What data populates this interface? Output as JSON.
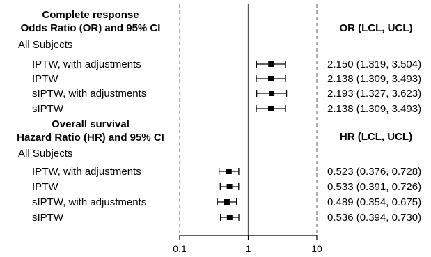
{
  "chart_data": {
    "type": "forest",
    "x_scale": "log",
    "xlim": [
      0.1,
      10
    ],
    "x_ticks": [
      "0.1",
      "1",
      "10"
    ],
    "reference_line": 1,
    "dashed_reference_lines": [
      0.1,
      10
    ],
    "sections": [
      {
        "title_line1": "Complete response",
        "title_line2": "Odds Ratio (OR) and 95% CI",
        "group": "All Subjects",
        "column_header": "OR (LCL, UCL)",
        "rows": [
          {
            "label": "IPTW, with adjustments",
            "estimate": 2.15,
            "lcl": 1.319,
            "ucl": 3.504,
            "text": "2.150 (1.319, 3.504)"
          },
          {
            "label": "IPTW",
            "estimate": 2.138,
            "lcl": 1.309,
            "ucl": 3.493,
            "text": "2.138 (1.309, 3.493)"
          },
          {
            "label": "sIPTW, with adjustments",
            "estimate": 2.193,
            "lcl": 1.327,
            "ucl": 3.623,
            "text": "2.193 (1.327, 3.623)"
          },
          {
            "label": "sIPTW",
            "estimate": 2.138,
            "lcl": 1.309,
            "ucl": 3.493,
            "text": "2.138 (1.309, 3.493)"
          }
        ]
      },
      {
        "title_line1": "Overall survival",
        "title_line2": "Hazard Ratio (HR) and 95% CI",
        "group": "All Subjects",
        "column_header": "HR (LCL, UCL)",
        "rows": [
          {
            "label": "IPTW, with adjustments",
            "estimate": 0.523,
            "lcl": 0.376,
            "ucl": 0.728,
            "text": "0.523 (0.376, 0.728)"
          },
          {
            "label": "IPTW",
            "estimate": 0.533,
            "lcl": 0.391,
            "ucl": 0.726,
            "text": "0.533 (0.391, 0.726)"
          },
          {
            "label": "sIPTW, with adjustments",
            "estimate": 0.489,
            "lcl": 0.354,
            "ucl": 0.675,
            "text": "0.489 (0.354, 0.675)"
          },
          {
            "label": "sIPTW",
            "estimate": 0.536,
            "lcl": 0.394,
            "ucl": 0.73,
            "text": "0.536 (0.394, 0.730)"
          }
        ]
      }
    ]
  }
}
